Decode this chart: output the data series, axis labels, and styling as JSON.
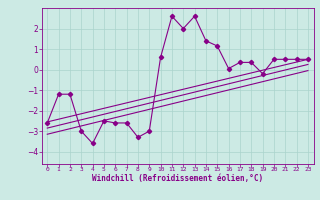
{
  "xlabel": "Windchill (Refroidissement éolien,°C)",
  "bg_color": "#cceae4",
  "line_color": "#880088",
  "grid_color": "#aad4cc",
  "spine_color": "#880088",
  "xlim": [
    -0.5,
    23.5
  ],
  "ylim": [
    -4.6,
    3.0
  ],
  "xticks": [
    0,
    1,
    2,
    3,
    4,
    5,
    6,
    7,
    8,
    9,
    10,
    11,
    12,
    13,
    14,
    15,
    16,
    17,
    18,
    19,
    20,
    21,
    22,
    23
  ],
  "yticks": [
    -4,
    -3,
    -2,
    -1,
    0,
    1,
    2
  ],
  "series": [
    [
      0,
      -2.6
    ],
    [
      1,
      -1.2
    ],
    [
      2,
      -1.2
    ],
    [
      3,
      -3.0
    ],
    [
      4,
      -3.6
    ],
    [
      5,
      -2.5
    ],
    [
      6,
      -2.6
    ],
    [
      7,
      -2.6
    ],
    [
      8,
      -3.3
    ],
    [
      9,
      -3.0
    ],
    [
      10,
      0.6
    ],
    [
      11,
      2.6
    ],
    [
      12,
      2.0
    ],
    [
      13,
      2.6
    ],
    [
      14,
      1.4
    ],
    [
      15,
      1.15
    ],
    [
      16,
      0.05
    ],
    [
      17,
      0.35
    ],
    [
      18,
      0.35
    ],
    [
      19,
      -0.2
    ],
    [
      20,
      0.5
    ],
    [
      21,
      0.5
    ],
    [
      22,
      0.5
    ],
    [
      23,
      0.5
    ]
  ],
  "trend_line1": [
    [
      0,
      -2.55
    ],
    [
      23,
      0.5
    ]
  ],
  "trend_line2": [
    [
      0,
      -2.85
    ],
    [
      23,
      0.25
    ]
  ],
  "trend_line3": [
    [
      0,
      -3.15
    ],
    [
      23,
      -0.05
    ]
  ]
}
